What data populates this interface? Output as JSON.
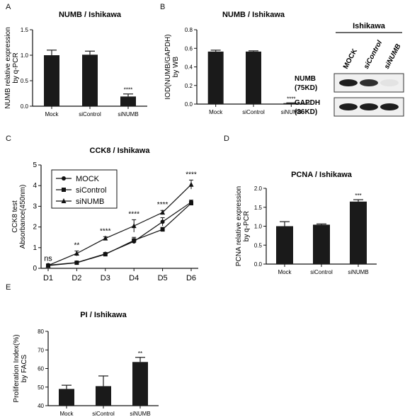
{
  "panels": {
    "A": "A",
    "B": "B",
    "C": "C",
    "D": "D",
    "E": "E"
  },
  "chart_data": [
    {
      "id": "A",
      "type": "bar",
      "title": "NUMB / Ishikawa",
      "ylabel_lines": [
        "NUMB relative expression",
        "by q-PCR"
      ],
      "categories": [
        "Mock",
        "siControl",
        "siNUMB"
      ],
      "values": [
        1.0,
        1.01,
        0.19
      ],
      "errors": [
        0.1,
        0.07,
        0.05
      ],
      "annotations": [
        "",
        "",
        "****"
      ],
      "ylim": [
        0,
        1.5
      ],
      "yticks": [
        "0.0",
        "0.5",
        "1.0",
        "1.5"
      ],
      "ytick_values": [
        0,
        0.5,
        1.0,
        1.5
      ]
    },
    {
      "id": "B",
      "type": "bar",
      "title": "NUMB / Ishikawa",
      "ylabel_lines": [
        "IOD(NUMB/GAPDH)",
        "by WB"
      ],
      "categories": [
        "Mock",
        "siControl",
        "siNUMB"
      ],
      "values": [
        0.565,
        0.565,
        0.01
      ],
      "errors": [
        0.015,
        0.008,
        0.003
      ],
      "annotations": [
        "",
        "",
        "****"
      ],
      "ylim": [
        0,
        0.8
      ],
      "yticks": [
        "0.0",
        "0.2",
        "0.4",
        "0.6",
        "0.8"
      ],
      "ytick_values": [
        0,
        0.2,
        0.4,
        0.6,
        0.8
      ]
    },
    {
      "id": "C",
      "type": "line",
      "title": "CCK8 / Ishikawa",
      "ylabel_lines": [
        "CCK8 test",
        "Absorbance(450nm)"
      ],
      "categories": [
        "D1",
        "D2",
        "D3",
        "D4",
        "D5",
        "D6"
      ],
      "series": [
        {
          "name": "MOCK",
          "marker": "circle",
          "values": [
            0.15,
            0.28,
            0.7,
            1.3,
            2.25,
            3.2
          ],
          "errors": [
            0.03,
            0.04,
            0.05,
            0.1,
            0.2,
            0.1
          ]
        },
        {
          "name": "siControl",
          "marker": "square",
          "values": [
            0.13,
            0.27,
            0.68,
            1.35,
            1.88,
            3.15
          ],
          "errors": [
            0.03,
            0.04,
            0.05,
            0.15,
            0.1,
            0.1
          ]
        },
        {
          "name": "siNUMB",
          "marker": "triangle",
          "values": [
            0.14,
            0.72,
            1.45,
            2.05,
            2.7,
            4.05
          ],
          "errors": [
            0.03,
            0.12,
            0.08,
            0.3,
            0.1,
            0.22
          ]
        }
      ],
      "annotations": [
        "ns",
        "**",
        "****",
        "****",
        "****",
        "****"
      ],
      "ylim": [
        0,
        5
      ],
      "yticks": [
        "0",
        "1",
        "2",
        "3",
        "4",
        "5"
      ],
      "ytick_values": [
        0,
        1,
        2,
        3,
        4,
        5
      ]
    },
    {
      "id": "D",
      "type": "bar",
      "title": "PCNA / Ishikawa",
      "ylabel_lines": [
        "PCNA relative expression",
        "by q-PCR"
      ],
      "categories": [
        "Mock",
        "siControl",
        "siNUMB"
      ],
      "values": [
        1.0,
        1.04,
        1.65
      ],
      "errors": [
        0.12,
        0.02,
        0.05
      ],
      "annotations": [
        "",
        "",
        "***"
      ],
      "ylim": [
        0,
        2.0
      ],
      "yticks": [
        "0.0",
        "0.5",
        "1.0",
        "1.5",
        "2.0"
      ],
      "ytick_values": [
        0,
        0.5,
        1.0,
        1.5,
        2.0
      ]
    },
    {
      "id": "E",
      "type": "bar",
      "title": "PI / Ishikawa",
      "ylabel_lines": [
        "Proliferation Index(%)",
        "by FACS"
      ],
      "categories": [
        "Mock",
        "siControl",
        "siNUMB"
      ],
      "values": [
        49,
        50.5,
        63.5
      ],
      "errors": [
        2,
        5.5,
        2.5
      ],
      "annotations": [
        "",
        "",
        "**"
      ],
      "ylim": [
        40,
        80
      ],
      "yticks": [
        "40",
        "50",
        "60",
        "70",
        "80"
      ],
      "ytick_values": [
        40,
        50,
        60,
        70,
        80
      ]
    }
  ],
  "blot": {
    "cell_line": "Ishikawa",
    "lanes": [
      "MOCK",
      "siControl",
      "siNUMB"
    ],
    "rows": [
      {
        "label1": "NUMB",
        "label2": "(75KD)",
        "intensities": [
          1.0,
          0.95,
          0.15
        ]
      },
      {
        "label1": "GAPDH",
        "label2": "(36KD)",
        "intensities": [
          1.0,
          1.0,
          1.0
        ]
      }
    ]
  }
}
